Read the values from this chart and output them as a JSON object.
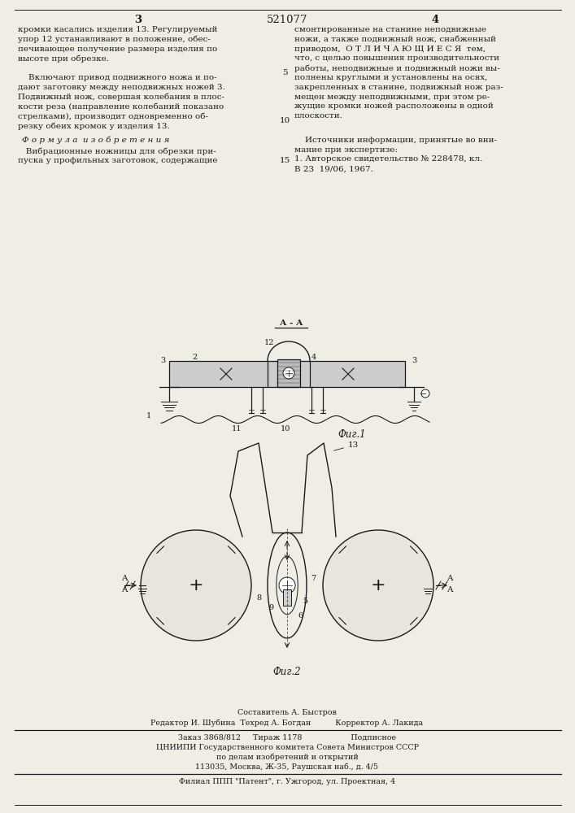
{
  "patent_number": "521077",
  "page_numbers": [
    "3",
    "4"
  ],
  "background_color": "#f0ede4",
  "text_color": "#1a1a1a",
  "col1_text": [
    "кромки касались изделия 13. Регулируемый",
    "упор 12 устанавливают в положение, обес-",
    "печивающее получение размера изделия по",
    "высоте при обрезке.",
    "",
    "    Включают привод подвижного ножа и по-",
    "дают заготовку между неподвижных ножей 3.",
    "Подвижный нож, совершая колебания в плос-",
    "кости реза (направление колебаний показано",
    "стрелками), производит одновременно об-",
    "резку обеих кромок у изделия 13."
  ],
  "col2_text": [
    "смонтированные на станине неподвижные",
    "ножи, а также подвижный нож, снабженный",
    "приводом,  О Т Л И Ч А Ю Щ И Е С Я  тем,",
    "что, с целью повышения производительности",
    "работы, неподвижные и подвижный ножи вы-",
    "полнены круглыми и установлены на осях,",
    "закрепленных в станине, подвижный нож раз-",
    "мещен между неподвижными, при этом ре-",
    "жущие кромки ножей расположены в одной",
    "плоскости."
  ],
  "formula_title": "Ф о р м у л а  и з о б р е т е н и я",
  "formula_text": [
    "   Вибрационные ножницы для обрезки при-",
    "пуска у профильных заготовок, содержащие"
  ],
  "sources_title": "    Источники информации, принятые во вни-",
  "sources_text": [
    "мание при экспертизе:",
    "1. Авторское свидетельство № 228478, кл.",
    "В 23  19/06, 1967."
  ],
  "fig1_label": "Фиг.1",
  "fig2_label": "Фиг.2",
  "fig1_section_label": "А - А",
  "footer_line1": "Составитель А. Быстров",
  "footer_line2": "Редактор И. Шубина  Техред А. Богдан          Корректор А. Лакида",
  "footer_line3": "Заказ 3868/812     Тираж 1178                    Подписное",
  "footer_line4": "ЦНИИПИ Государственного комитета Совета Министров СССР",
  "footer_line5": "по делам изобретений и открытий",
  "footer_line6": "113035, Москва, Ж-35, Раушская наб., д. 4/5",
  "footer_line7": "Филиал ППП \"Патент\", г. Ужгород, ул. Проектная, 4"
}
